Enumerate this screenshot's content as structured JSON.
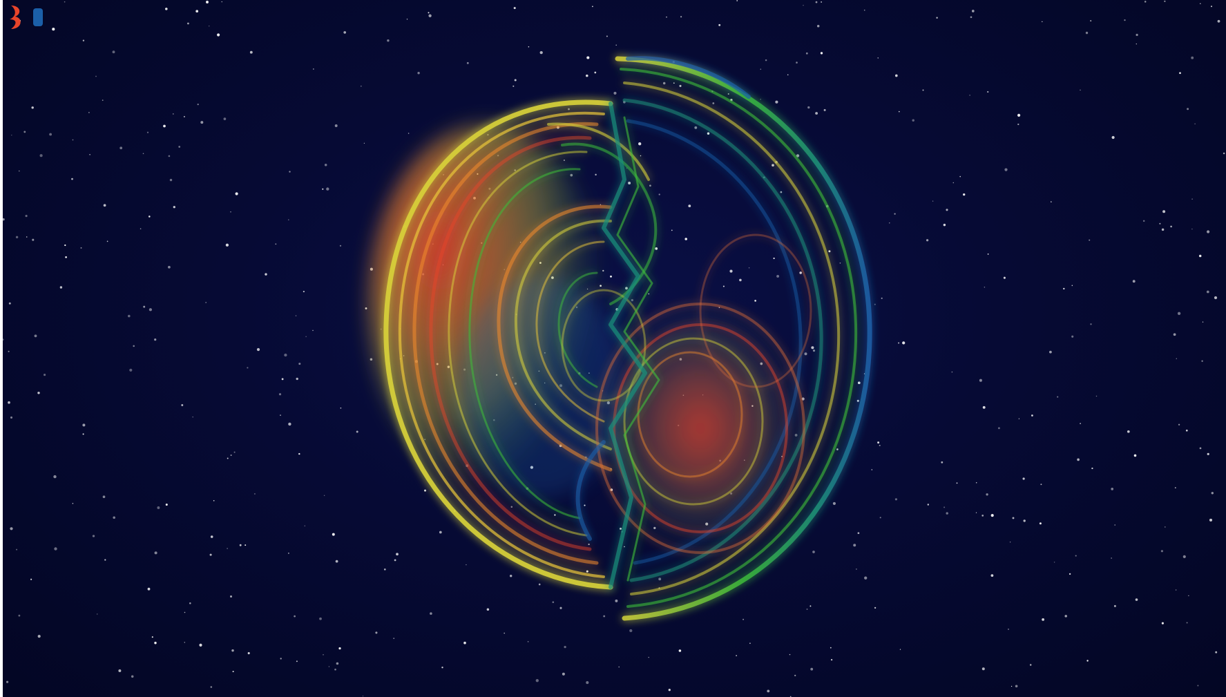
{
  "scene": {
    "subject": "gravitational-wave-sphere",
    "colors": {
      "background": "#060a34",
      "red": "#e8442a",
      "orange": "#f08a2c",
      "yellow": "#d8d23a",
      "green": "#3dbb3a",
      "teal": "#1d8f7a",
      "blue": "#1b5fa8"
    }
  }
}
